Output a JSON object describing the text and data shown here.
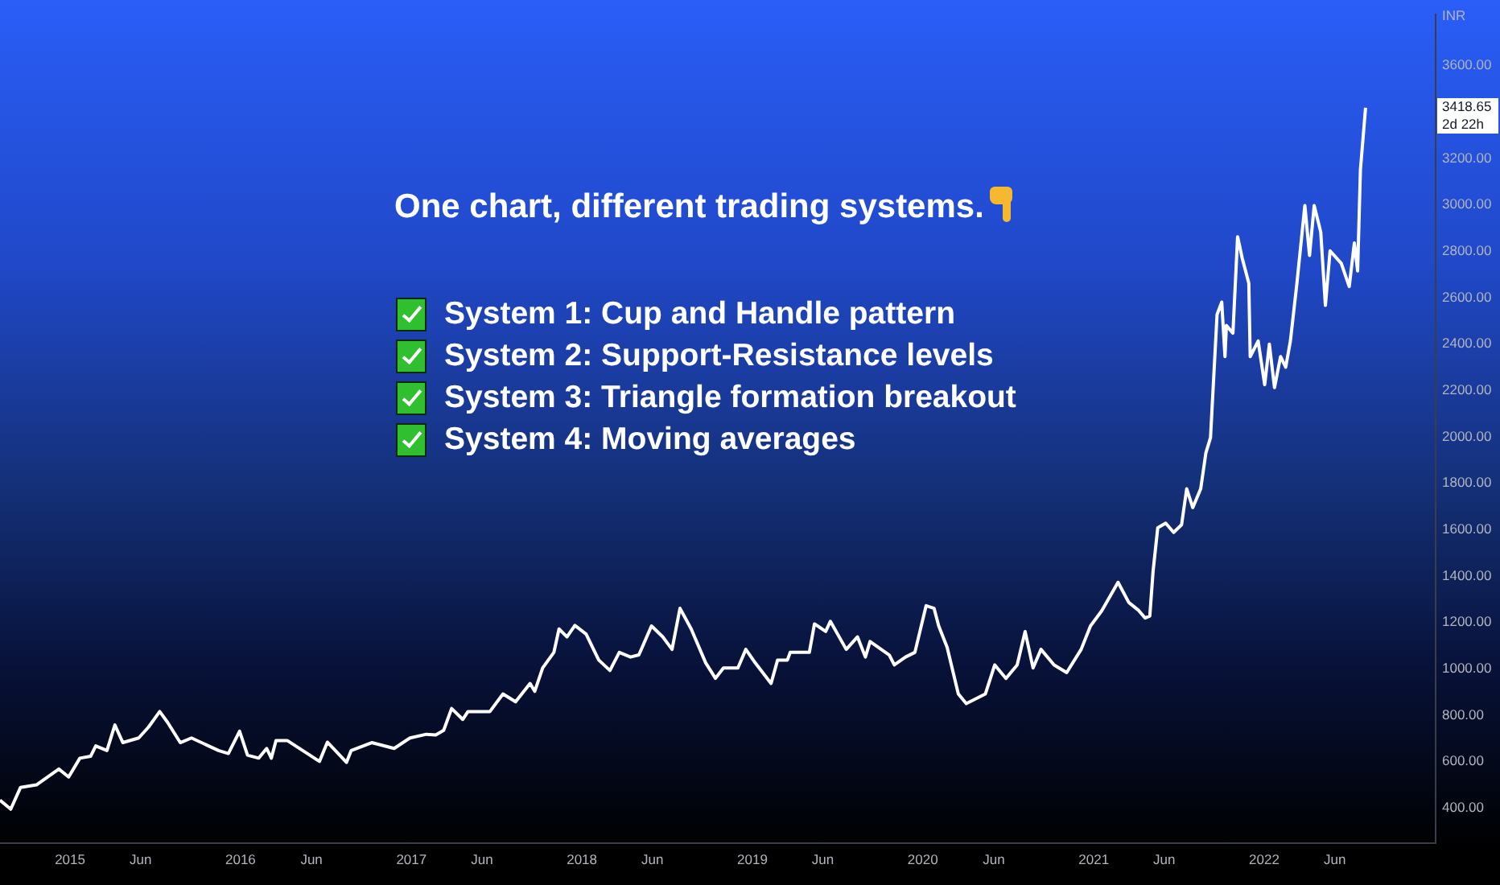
{
  "chart_data": {
    "type": "line",
    "title": "One chart, different trading systems.",
    "ylabel": "INR",
    "annotations": [
      "System 1: Cup and Handle pattern",
      "System 2: Support-Resistance levels",
      "System 3: Triangle formation breakout",
      "System 4: Moving averages",
      "3418.65",
      "2d 22h"
    ],
    "x": [
      "2014-08-04",
      "2014-08-27",
      "2014-09-17",
      "2014-10-21",
      "2014-12-08",
      "2014-12-29",
      "2015-01-22",
      "2015-02-14",
      "2015-02-25",
      "2015-03-21",
      "2015-04-07",
      "2015-04-24",
      "2015-05-28",
      "2015-06-18",
      "2015-07-12",
      "2015-07-29",
      "2015-08-25",
      "2015-09-18",
      "2015-11-15",
      "2015-12-06",
      "2015-12-30",
      "2016-01-16",
      "2016-02-09",
      "2016-02-26",
      "2016-03-07",
      "2016-03-17",
      "2016-04-10",
      "2016-06-18",
      "2016-07-05",
      "2016-08-15",
      "2016-08-25",
      "2016-10-08",
      "2016-11-25",
      "2016-12-29",
      "2017-02-02",
      "2017-02-22",
      "2017-03-11",
      "2017-03-28",
      "2017-04-21",
      "2017-05-02",
      "2017-06-18",
      "2017-07-16",
      "2017-08-12",
      "2017-09-12",
      "2017-09-22",
      "2017-10-09",
      "2017-11-02",
      "2017-11-13",
      "2017-11-30",
      "2017-12-17",
      "2018-01-10",
      "2018-02-06",
      "2018-03-02",
      "2018-03-22",
      "2018-04-15",
      "2018-05-03",
      "2018-05-30",
      "2018-06-23",
      "2018-07-13",
      "2018-07-30",
      "2018-08-23",
      "2018-09-23",
      "2018-10-14",
      "2018-10-31",
      "2018-12-01",
      "2018-12-18",
      "2019-01-07",
      "2019-02-10",
      "2019-02-24",
      "2019-03-17",
      "2019-03-23",
      "2019-05-03",
      "2019-05-14",
      "2019-06-07",
      "2019-06-17",
      "2019-07-21",
      "2019-08-14",
      "2019-08-31",
      "2019-09-10",
      "2019-10-21",
      "2019-11-01",
      "2019-11-25",
      "2019-12-15",
      "2020-01-08",
      "2020-01-25",
      "2020-02-04",
      "2020-02-22",
      "2020-03-17",
      "2020-04-03",
      "2020-05-14",
      "2020-06-03",
      "2020-06-27",
      "2020-07-21",
      "2020-08-07",
      "2020-08-24",
      "2020-09-10",
      "2020-10-08",
      "2020-11-04",
      "2020-12-05",
      "2020-12-25",
      "2021-01-18",
      "2021-02-22",
      "2021-03-17",
      "2021-04-07",
      "2021-04-21",
      "2021-05-01",
      "2021-05-08",
      "2021-05-18",
      "2021-06-04",
      "2021-06-21",
      "2021-07-08",
      "2021-07-19",
      "2021-08-01",
      "2021-08-18",
      "2021-08-29",
      "2021-09-08",
      "2021-09-22",
      "2021-10-02",
      "2021-10-09",
      "2021-10-12",
      "2021-10-26",
      "2021-11-05",
      "2021-11-15",
      "2021-11-29",
      "2021-12-02",
      "2021-12-19",
      "2022-01-02",
      "2022-01-12",
      "2022-01-23",
      "2022-02-05",
      "2022-02-16",
      "2022-02-26",
      "2022-03-12",
      "2022-03-29",
      "2022-04-08",
      "2022-04-18",
      "2022-05-02",
      "2022-05-12",
      "2022-05-22",
      "2022-06-15",
      "2022-07-02",
      "2022-07-13",
      "2022-07-20",
      "2022-07-26",
      "2022-08-06"
    ],
    "values": [
      434,
      395,
      489,
      500,
      568,
      534,
      615,
      623,
      668,
      648,
      758,
      682,
      702,
      749,
      816,
      769,
      682,
      702,
      648,
      635,
      731,
      628,
      615,
      657,
      615,
      691,
      691,
      601,
      684,
      597,
      648,
      682,
      657,
      702,
      718,
      715,
      735,
      829,
      782,
      816,
      816,
      892,
      858,
      937,
      903,
      1004,
      1071,
      1172,
      1138,
      1187,
      1150,
      1038,
      993,
      1071,
      1051,
      1060,
      1185,
      1138,
      1084,
      1261,
      1172,
      1026,
      959,
      1004,
      1004,
      1084,
      1026,
      937,
      1038,
      1038,
      1071,
      1071,
      1194,
      1161,
      1205,
      1084,
      1138,
      1051,
      1118,
      1060,
      1017,
      1051,
      1071,
      1272,
      1261,
      1185,
      1093,
      892,
      850,
      892,
      1017,
      959,
      1017,
      1161,
      1004,
      1084,
      1017,
      984,
      1084,
      1185,
      1250,
      1373,
      1286,
      1252,
      1219,
      1228,
      1420,
      1608,
      1628,
      1588,
      1621,
      1776,
      1695,
      1776,
      1930,
      1997,
      2527,
      2581,
      2346,
      2480,
      2447,
      2863,
      2769,
      2662,
      2346,
      2413,
      2225,
      2400,
      2212,
      2346,
      2300,
      2413,
      2662,
      2997,
      2782,
      2997,
      2883,
      2567,
      2802,
      2748,
      2648,
      2836,
      2715,
      3152,
      3418.65
    ],
    "color": "#ffffff",
    "marker": "none",
    "grid": false,
    "legend": false,
    "xlim": [
      "2014-08-04",
      "2023-01-03"
    ],
    "xticks": [
      {
        "value": "2015",
        "label": "2015"
      },
      {
        "value": "2015-06",
        "label": "Jun"
      },
      {
        "value": "2016",
        "label": "2016"
      },
      {
        "value": "2016-06",
        "label": "Jun"
      },
      {
        "value": "2017",
        "label": "2017"
      },
      {
        "value": "2017-06",
        "label": "Jun"
      },
      {
        "value": "2018",
        "label": "2018"
      },
      {
        "value": "2018-06",
        "label": "Jun"
      },
      {
        "value": "2019",
        "label": "2019"
      },
      {
        "value": "2019-06",
        "label": "Jun"
      },
      {
        "value": "2020",
        "label": "2020"
      },
      {
        "value": "2020-06",
        "label": "Jun"
      },
      {
        "value": "2021",
        "label": "2021"
      },
      {
        "value": "2021-06",
        "label": "Jun"
      },
      {
        "value": "2022",
        "label": "2022"
      },
      {
        "value": "2022-06",
        "label": "Jun"
      }
    ],
    "ylim": [
      250,
      3820
    ],
    "yticks": [
      {
        "value": 400,
        "label": "400.00"
      },
      {
        "value": 600,
        "label": "600.00"
      },
      {
        "value": 800,
        "label": "800.00"
      },
      {
        "value": 1000,
        "label": "1000.00"
      },
      {
        "value": 1200,
        "label": "1200.00"
      },
      {
        "value": 1400,
        "label": "1400.00"
      },
      {
        "value": 1600,
        "label": "1600.00"
      },
      {
        "value": 1800,
        "label": "1800.00"
      },
      {
        "value": 2000,
        "label": "2000.00"
      },
      {
        "value": 2200,
        "label": "2200.00"
      },
      {
        "value": 2400,
        "label": "2400.00"
      },
      {
        "value": 2600,
        "label": "2600.00"
      },
      {
        "value": 2800,
        "label": "2800.00"
      },
      {
        "value": 3000,
        "label": "3000.00"
      },
      {
        "value": 3200,
        "label": "3200.00"
      },
      {
        "value": 3600,
        "label": "3600.00"
      }
    ]
  }
}
